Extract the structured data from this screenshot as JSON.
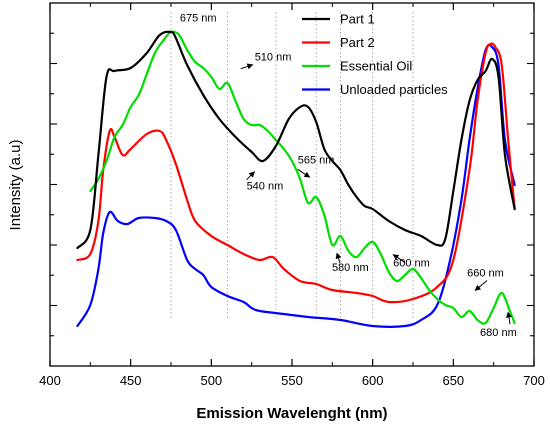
{
  "chart_data": {
    "type": "line",
    "xlabel": "Emission Wavelenght (nm)",
    "ylabel": "Intensity (a.u)",
    "xlim": [
      400,
      700
    ],
    "ylim": [
      0,
      100
    ],
    "x_ticks": [
      "400",
      "450",
      "500",
      "550",
      "600",
      "650",
      "700"
    ],
    "y_ticks_labeled": false,
    "legend_position": "top-right",
    "series": [
      {
        "name": "Part 1",
        "color": "#000000",
        "x": [
          417,
          425,
          430,
          435,
          440,
          450,
          460,
          468,
          475,
          478,
          485,
          495,
          505,
          515,
          525,
          532,
          540,
          548,
          555,
          560,
          565,
          570,
          575,
          580,
          585,
          590,
          595,
          600,
          610,
          620,
          630,
          640,
          645,
          650,
          655,
          660,
          665,
          670,
          674,
          678,
          682,
          688
        ],
        "y": [
          29,
          35,
          60,
          86,
          88,
          89,
          94,
          100,
          101,
          99,
          90,
          80,
          72,
          66,
          61,
          58,
          63,
          72,
          76,
          76,
          71,
          62,
          58,
          55,
          50,
          46,
          43,
          42,
          38,
          35,
          33,
          30,
          32,
          48,
          65,
          78,
          85,
          88,
          92,
          86,
          60,
          42
        ]
      },
      {
        "name": "Part 2",
        "color": "#ff0000",
        "x": [
          417,
          425,
          430,
          433,
          437,
          440,
          445,
          450,
          460,
          468,
          472,
          478,
          485,
          490,
          500,
          510,
          520,
          530,
          538,
          545,
          555,
          565,
          575,
          590,
          600,
          610,
          625,
          640,
          650,
          660,
          665,
          670,
          673,
          676,
          680,
          684,
          688
        ],
        "y": [
          25,
          27,
          38,
          55,
          68,
          66,
          60,
          62,
          67,
          68,
          65,
          57,
          45,
          38,
          33,
          30,
          27,
          25,
          26,
          22,
          18,
          17,
          15,
          14,
          13,
          11,
          12,
          16,
          25,
          55,
          78,
          94,
          97,
          96,
          90,
          65,
          42
        ]
      },
      {
        "name": "Essential Oil",
        "color": "#00dd00",
        "x": [
          425,
          430,
          435,
          440,
          445,
          450,
          455,
          460,
          465,
          470,
          475,
          480,
          485,
          490,
          495,
          500,
          505,
          510,
          515,
          520,
          525,
          530,
          535,
          540,
          545,
          550,
          555,
          560,
          565,
          570,
          575,
          580,
          585,
          590,
          595,
          600,
          605,
          610,
          615,
          620,
          625,
          630,
          635,
          640,
          645,
          650,
          655,
          660,
          665,
          670,
          675,
          680,
          685,
          688
        ],
        "y": [
          48,
          52,
          58,
          66,
          70,
          76,
          80,
          87,
          94,
          98,
          101,
          100,
          95,
          91,
          89,
          86,
          82,
          84,
          78,
          72,
          70,
          70,
          68,
          65,
          62,
          58,
          52,
          44,
          46,
          40,
          30,
          33,
          28,
          26,
          29,
          31,
          27,
          21,
          18,
          20,
          22,
          19,
          15,
          12,
          10,
          9,
          6,
          8,
          5,
          4,
          9,
          14,
          8,
          4
        ]
      },
      {
        "name": "Unloaded particles",
        "color": "#0000ff",
        "x": [
          417,
          425,
          430,
          433,
          437,
          442,
          448,
          455,
          465,
          472,
          478,
          485,
          490,
          495,
          500,
          510,
          520,
          525,
          530,
          545,
          560,
          580,
          600,
          620,
          630,
          640,
          648,
          655,
          660,
          665,
          670,
          674,
          678,
          682,
          688
        ],
        "y": [
          3,
          10,
          22,
          34,
          41,
          38,
          37,
          39,
          39,
          38,
          35,
          25,
          22,
          20,
          16,
          13,
          11,
          9,
          8,
          7,
          6,
          5,
          3,
          3,
          5,
          10,
          25,
          45,
          65,
          82,
          95,
          96,
          90,
          65,
          50
        ]
      }
    ],
    "annotations": [
      {
        "text": "675 nm",
        "x": 478,
        "y": 105.2
      },
      {
        "text": "510 nm",
        "x": 512,
        "y": 93.1
      },
      {
        "text": "540 nm",
        "x": 533,
        "y": 51.1
      },
      {
        "text": "565 nm",
        "x": 561,
        "y": 57.9
      },
      {
        "text": "580 nm",
        "x": 576,
        "y": 23.3
      },
      {
        "text": "600 nm",
        "x": 604,
        "y": 24.8
      },
      {
        "text": "660 nm",
        "x": 661,
        "y": 19.5
      },
      {
        "text": "680 nm",
        "x": 674,
        "y": -0.4
      }
    ]
  }
}
